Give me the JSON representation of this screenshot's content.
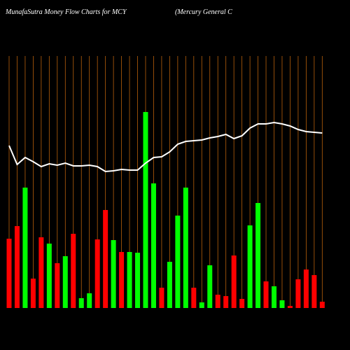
{
  "chart_data": {
    "type": "bar",
    "title": "MunafaSutra  Money Flow  Charts for MCY",
    "subtitle": "(Mercury General C",
    "categories": [
      null,
      null,
      null,
      null,
      null,
      null,
      null,
      null,
      null,
      null,
      null,
      null,
      null,
      null,
      null,
      null,
      null,
      null,
      null,
      null,
      null,
      null,
      null,
      null,
      null,
      null,
      null,
      null,
      null,
      null,
      null,
      null,
      null,
      null,
      null,
      null,
      null,
      null,
      null,
      null
    ],
    "series": [
      {
        "type": "bar",
        "values": [
          99,
          117,
          172,
          42,
          101,
          92,
          64,
          74,
          106,
          14,
          21,
          98,
          140,
          97,
          80,
          80,
          79,
          280,
          178,
          29,
          66,
          132,
          172,
          29,
          8,
          61,
          19,
          17,
          75,
          13,
          118,
          150,
          38,
          31,
          11,
          3,
          41,
          55,
          47,
          9
        ],
        "colors": [
          "#ff0000",
          "#ff0000",
          "#00ff00",
          "#ff0000",
          "#ff0000",
          "#00ff00",
          "#ff0000",
          "#00ff00",
          "#ff0000",
          "#00ff00",
          "#00ff00",
          "#ff0000",
          "#ff0000",
          "#00ff00",
          "#ff0000",
          "#00ff00",
          "#00ff00",
          "#00ff00",
          "#00ff00",
          "#ff0000",
          "#00ff00",
          "#00ff00",
          "#00ff00",
          "#ff0000",
          "#00ff00",
          "#00ff00",
          "#ff0000",
          "#ff0000",
          "#ff0000",
          "#ff0000",
          "#00ff00",
          "#00ff00",
          "#ff0000",
          "#00ff00",
          "#00ff00",
          "#ff0000",
          "#ff0000",
          "#ff0000",
          "#ff0000",
          "#ff0000"
        ]
      },
      {
        "type": "line",
        "axis": "y2",
        "color": "#ffffff",
        "values": [
          232,
          205,
          215,
          209,
          202,
          206,
          204,
          207,
          203,
          203,
          204,
          202,
          195,
          196,
          198,
          197,
          197,
          207,
          215,
          216,
          223,
          234,
          238,
          239,
          240,
          243,
          245,
          248,
          242,
          246,
          257,
          263,
          263,
          265,
          263,
          260,
          255,
          252,
          251,
          250
        ]
      }
    ],
    "ylim": [
      0,
      280
    ],
    "y2lim": [
      0,
      280
    ],
    "grid_color": "#b8600b"
  }
}
